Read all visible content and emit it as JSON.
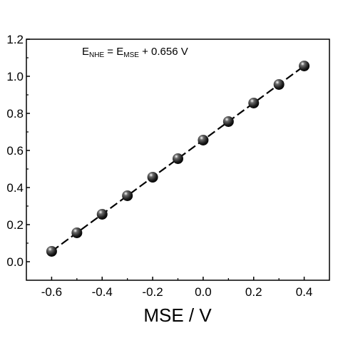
{
  "chart_data": {
    "type": "scatter",
    "title": "",
    "xlabel": "MSE / V",
    "ylabel": "",
    "xlim": [
      -0.7,
      0.5
    ],
    "ylim": [
      -0.1,
      1.2
    ],
    "xticks": [
      -0.6,
      -0.4,
      -0.2,
      0.0,
      0.2,
      0.4
    ],
    "xtick_labels": [
      "-0.6",
      "-0.4",
      "-0.2",
      "0.0",
      "0.2",
      "0.4"
    ],
    "yticks": [
      0.0,
      0.2,
      0.4,
      0.6,
      0.8,
      1.0,
      1.2
    ],
    "ytick_labels": [
      "0.0",
      "0.2",
      "0.4",
      "0.6",
      "0.8",
      "1.0",
      "1.2"
    ],
    "grid": false,
    "series": [
      {
        "x": [
          -0.6,
          -0.5,
          -0.4,
          -0.3,
          -0.2,
          -0.1,
          0.0,
          0.1,
          0.2,
          0.3,
          0.4
        ],
        "y": [
          0.056,
          0.156,
          0.256,
          0.356,
          0.456,
          0.556,
          0.656,
          0.756,
          0.856,
          0.956,
          1.056
        ],
        "marker_color": "#1a1a1a",
        "line_color": "#000000",
        "line_style": "dashed"
      }
    ],
    "annotation": {
      "E1": "E",
      "sub1": "NHE",
      "eq": " = E",
      "sub2": "MSE",
      "rest": " + 0.656 V"
    }
  }
}
